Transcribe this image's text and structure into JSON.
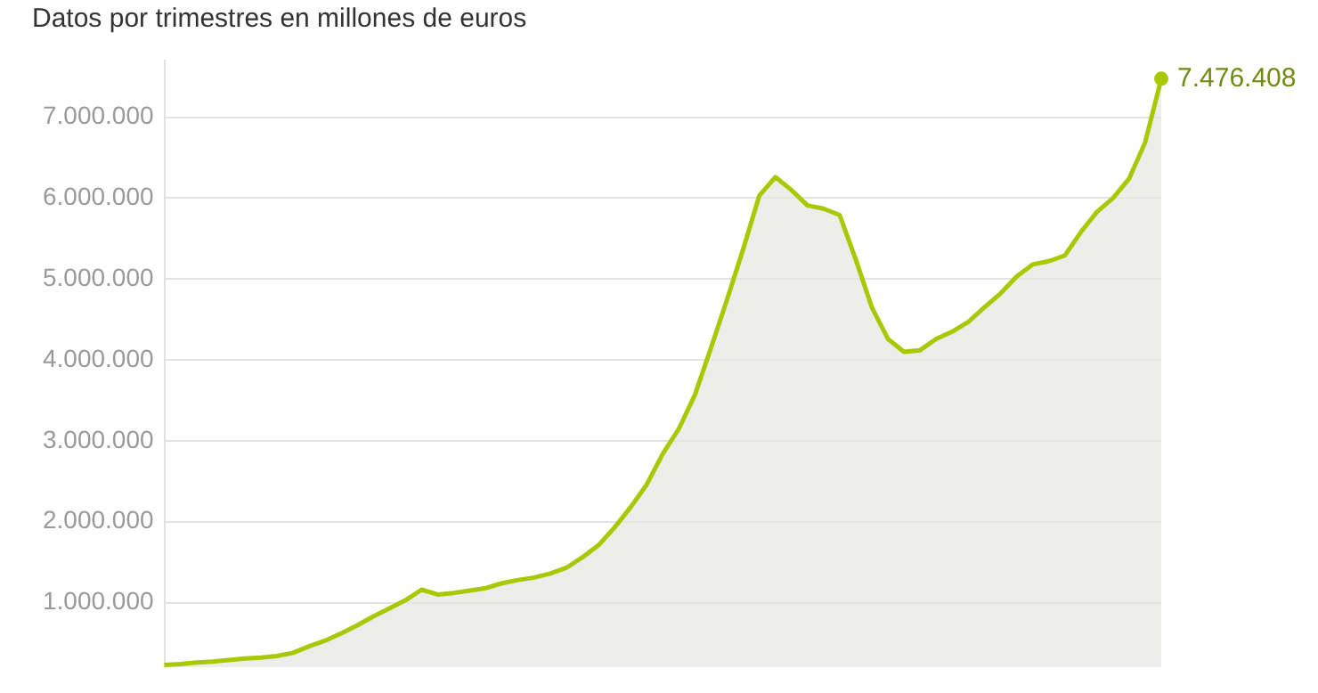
{
  "chart_data": {
    "type": "area",
    "title": "Datos por trimestres en millones de euros",
    "categories": [
      null,
      null,
      null,
      null,
      null,
      null,
      null,
      null,
      null,
      null,
      null,
      null,
      null,
      null,
      null,
      null,
      null,
      null,
      null,
      null,
      null,
      null,
      null,
      null,
      null,
      null,
      null,
      null,
      null,
      null,
      null,
      null,
      null,
      null,
      null,
      null,
      null,
      null,
      null,
      null,
      null,
      null,
      null,
      null,
      null,
      null,
      null,
      null,
      null,
      null,
      null,
      null,
      null,
      null,
      null,
      null,
      null,
      null,
      null,
      null,
      null,
      null,
      null
    ],
    "series": [
      {
        "color": "#a8c800",
        "values": [
          230000,
          240000,
          260000,
          270000,
          290000,
          310000,
          320000,
          340000,
          380000,
          460000,
          530000,
          620000,
          720000,
          830000,
          930000,
          1030000,
          1160000,
          1100000,
          1120000,
          1150000,
          1180000,
          1240000,
          1280000,
          1310000,
          1360000,
          1430000,
          1560000,
          1710000,
          1930000,
          2180000,
          2460000,
          2840000,
          3150000,
          3570000,
          4150000,
          4750000,
          5370000,
          6030000,
          6260000,
          6100000,
          5910000,
          5870000,
          5790000,
          5240000,
          4650000,
          4260000,
          4100000,
          4120000,
          4260000,
          4350000,
          4470000,
          4650000,
          4820000,
          5030000,
          5180000,
          5220000,
          5290000,
          5580000,
          5830000,
          6000000,
          6240000,
          6690000,
          7476408
        ],
        "value_labels": [
          null,
          null,
          null,
          null,
          null,
          null,
          null,
          null,
          null,
          null,
          null,
          null,
          null,
          null,
          null,
          null,
          null,
          null,
          null,
          null,
          null,
          null,
          null,
          null,
          null,
          null,
          null,
          null,
          null,
          null,
          null,
          null,
          null,
          null,
          null,
          null,
          null,
          null,
          null,
          null,
          null,
          null,
          null,
          null,
          null,
          null,
          null,
          null,
          null,
          null,
          null,
          null,
          null,
          null,
          null,
          null,
          null,
          null,
          null,
          null,
          null,
          null,
          "7.476.408"
        ]
      }
    ],
    "ylim": [
      200000,
      7700000
    ],
    "yticks": [
      {
        "value": 1000000,
        "label": "1.000.000"
      },
      {
        "value": 2000000,
        "label": "2.000.000"
      },
      {
        "value": 3000000,
        "label": "3.000.000"
      },
      {
        "value": 4000000,
        "label": "4.000.000"
      },
      {
        "value": 5000000,
        "label": "5.000.000"
      },
      {
        "value": 6000000,
        "label": "6.000.000"
      },
      {
        "value": 7000000,
        "label": "7.000.000"
      }
    ],
    "grid": "y",
    "legend": false,
    "tick_labels": "y"
  }
}
